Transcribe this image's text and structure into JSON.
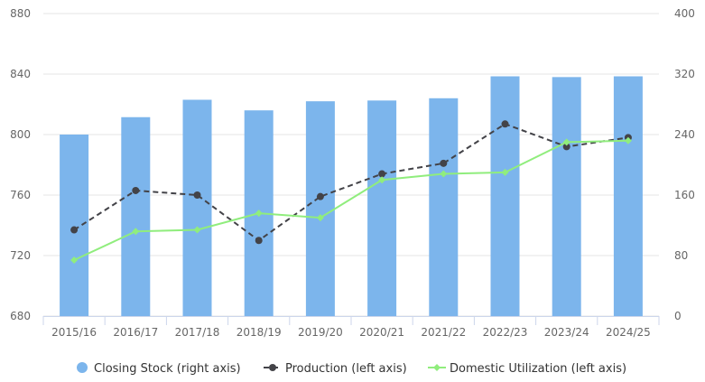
{
  "chart_data": {
    "type": "bar",
    "categories": [
      "2015/16",
      "2016/17",
      "2017/18",
      "2018/19",
      "2019/20",
      "2020/21",
      "2021/22",
      "2022/23",
      "2023/24",
      "2024/25"
    ],
    "left_axis": {
      "min": 680,
      "max": 880,
      "ticks": [
        680,
        720,
        760,
        800,
        840,
        880
      ],
      "tick_labels": [
        "680",
        "720",
        "760",
        "800",
        "840",
        "880"
      ]
    },
    "right_axis": {
      "min": 0,
      "max": 400,
      "ticks": [
        0,
        80,
        160,
        240,
        320,
        400
      ],
      "tick_labels": [
        "0",
        "80",
        "160",
        "240",
        "320",
        "400"
      ]
    },
    "series": [
      {
        "name": "Closing Stock (right axis)",
        "type": "bar",
        "axis": "right",
        "color": "#7cb5ec",
        "values": [
          240,
          263,
          286,
          272,
          284,
          285,
          288,
          317,
          316,
          317
        ]
      },
      {
        "name": "Production (left axis)",
        "type": "line",
        "dash": true,
        "axis": "left",
        "color": "#434348",
        "values": [
          737,
          763,
          760,
          730,
          759,
          774,
          781,
          807,
          792,
          798
        ]
      },
      {
        "name": "Domestic Utilization (left axis)",
        "type": "line",
        "dash": false,
        "axis": "left",
        "color": "#90ed7d",
        "values": [
          717,
          736,
          737,
          748,
          745,
          770,
          774,
          775,
          795,
          796
        ]
      }
    ],
    "grid": true,
    "legend_position": "bottom-center"
  }
}
